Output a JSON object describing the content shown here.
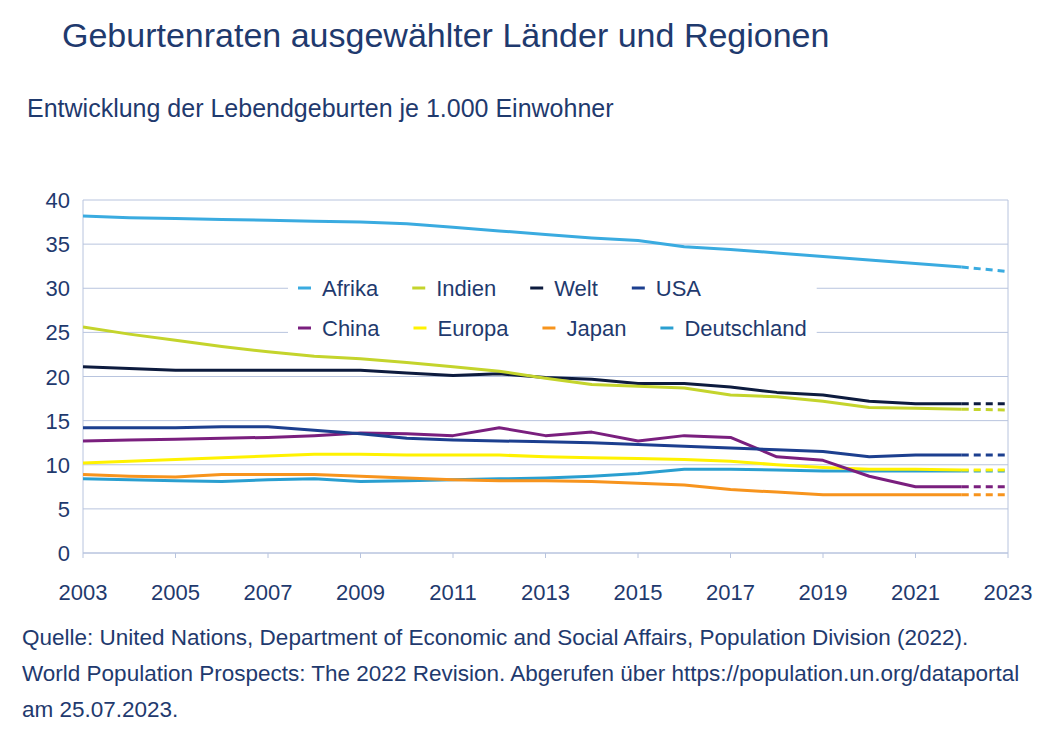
{
  "chart_data": {
    "type": "line",
    "title": "Geburtenraten ausgewählter Länder und Regionen",
    "subtitle": "Entwicklung der Lebendgeburten je 1.000 Einwohner",
    "source": "Quelle: United Nations, Department of Economic and Social Affairs, Population Division (2022). World Population Prospects: The 2022 Revision. Abgerufen über https://population.un.org/dataportal am 25.07.2023.",
    "x": [
      2003,
      2004,
      2005,
      2006,
      2007,
      2008,
      2009,
      2010,
      2011,
      2012,
      2013,
      2014,
      2015,
      2016,
      2017,
      2018,
      2019,
      2020,
      2021,
      2022,
      2023
    ],
    "xlim": [
      2003,
      2023
    ],
    "xticks": [
      2003,
      2005,
      2007,
      2009,
      2011,
      2013,
      2015,
      2017,
      2019,
      2021,
      2023
    ],
    "ylim": [
      0,
      40
    ],
    "yticks": [
      0,
      5,
      10,
      15,
      20,
      25,
      30,
      35,
      40
    ],
    "grid": true,
    "legend": "top",
    "series": [
      {
        "name": "Afrika",
        "color": "#3aabe0",
        "values": [
          38.2,
          38.0,
          37.9,
          37.8,
          37.7,
          37.6,
          37.5,
          37.3,
          36.9,
          36.5,
          36.1,
          35.7,
          35.4,
          34.7,
          34.4,
          34.0,
          33.6,
          33.2,
          32.8,
          32.4,
          31.9
        ]
      },
      {
        "name": "Indien",
        "color": "#c4d42c",
        "values": [
          25.6,
          24.8,
          24.1,
          23.4,
          22.8,
          22.3,
          22.0,
          21.6,
          21.1,
          20.6,
          19.8,
          19.1,
          18.9,
          18.7,
          17.9,
          17.7,
          17.2,
          16.5,
          16.4,
          16.3,
          16.2
        ]
      },
      {
        "name": "Welt",
        "color": "#0d1b3e",
        "values": [
          21.1,
          20.9,
          20.7,
          20.7,
          20.7,
          20.7,
          20.7,
          20.4,
          20.1,
          20.3,
          19.9,
          19.7,
          19.2,
          19.2,
          18.8,
          18.2,
          17.9,
          17.2,
          16.9,
          16.9,
          16.9
        ]
      },
      {
        "name": "USA",
        "color": "#1c3f8f",
        "values": [
          14.2,
          14.2,
          14.2,
          14.3,
          14.3,
          13.9,
          13.5,
          13.0,
          12.8,
          12.7,
          12.6,
          12.5,
          12.3,
          12.1,
          11.9,
          11.7,
          11.5,
          10.9,
          11.1,
          11.1,
          11.1
        ]
      },
      {
        "name": "China",
        "color": "#7a1f7e",
        "values": [
          12.7,
          12.8,
          12.9,
          13.0,
          13.1,
          13.3,
          13.6,
          13.5,
          13.3,
          14.2,
          13.3,
          13.7,
          12.7,
          13.3,
          13.1,
          10.9,
          10.5,
          8.7,
          7.5,
          7.5,
          7.5
        ]
      },
      {
        "name": "Europa",
        "color": "#fff200",
        "values": [
          10.2,
          10.4,
          10.6,
          10.8,
          11.0,
          11.2,
          11.2,
          11.1,
          11.1,
          11.1,
          10.9,
          10.8,
          10.7,
          10.6,
          10.4,
          10.0,
          9.7,
          9.5,
          9.5,
          9.4,
          9.4
        ]
      },
      {
        "name": "Japan",
        "color": "#f7941d",
        "values": [
          8.9,
          8.7,
          8.6,
          8.9,
          8.9,
          8.9,
          8.7,
          8.5,
          8.3,
          8.2,
          8.2,
          8.1,
          7.9,
          7.7,
          7.2,
          6.9,
          6.6,
          6.6,
          6.6,
          6.6,
          6.6
        ]
      },
      {
        "name": "Deutschland",
        "color": "#2a9fd0",
        "values": [
          8.4,
          8.3,
          8.2,
          8.1,
          8.3,
          8.4,
          8.1,
          8.2,
          8.3,
          8.4,
          8.5,
          8.7,
          9.0,
          9.5,
          9.5,
          9.4,
          9.3,
          9.3,
          9.3,
          9.3,
          9.3
        ]
      }
    ]
  }
}
